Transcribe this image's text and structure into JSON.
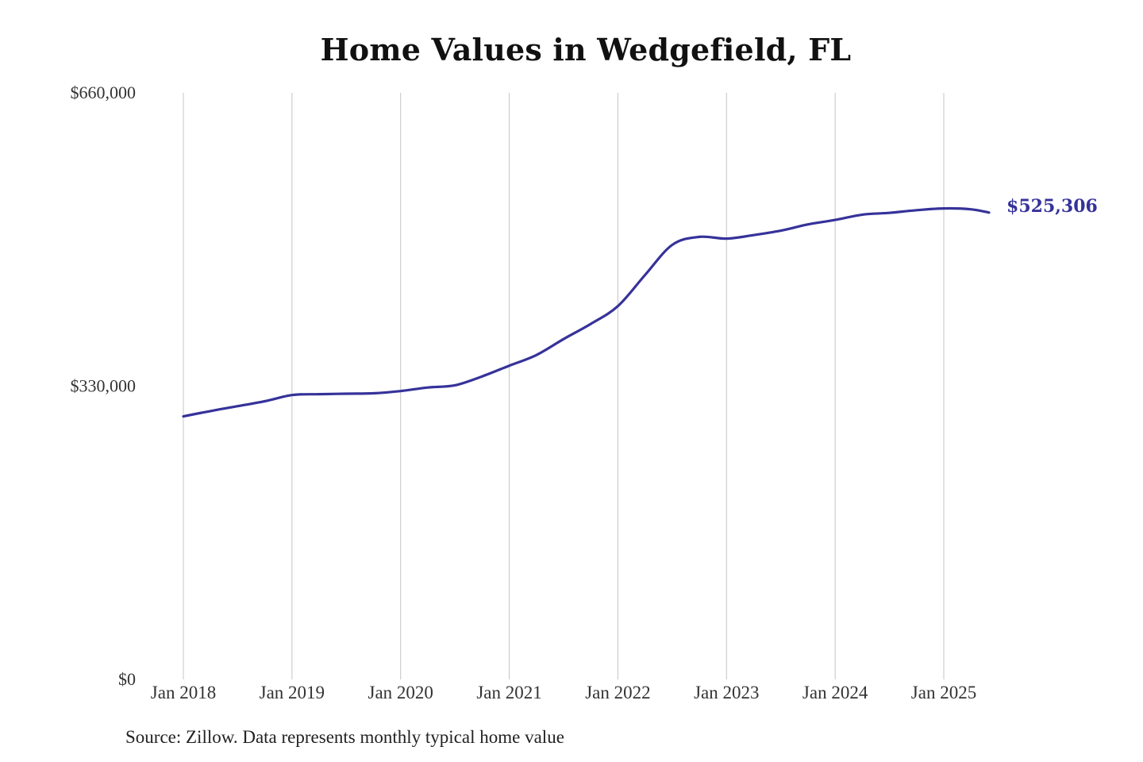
{
  "chart_data": {
    "type": "line",
    "title": "Home Values in Wedgefield, FL",
    "source": "Source: Zillow. Data represents monthly typical home value",
    "ylim": [
      0,
      660000
    ],
    "y_ticks": [
      {
        "value": 0,
        "label": "$0"
      },
      {
        "value": 330000,
        "label": "$330,000"
      },
      {
        "value": 660000,
        "label": "$660,000"
      }
    ],
    "x_ticks": [
      {
        "value": "2018-01",
        "label": "Jan 2018"
      },
      {
        "value": "2019-01",
        "label": "Jan 2019"
      },
      {
        "value": "2020-01",
        "label": "Jan 2020"
      },
      {
        "value": "2021-01",
        "label": "Jan 2021"
      },
      {
        "value": "2022-01",
        "label": "Jan 2022"
      },
      {
        "value": "2023-01",
        "label": "Jan 2023"
      },
      {
        "value": "2024-01",
        "label": "Jan 2024"
      },
      {
        "value": "2025-01",
        "label": "Jan 2025"
      }
    ],
    "grid": "vertical",
    "line_color": "#36329a",
    "series": [
      {
        "name": "",
        "points": [
          {
            "x": "2018-01",
            "y": 296000
          },
          {
            "x": "2018-04",
            "y": 302000
          },
          {
            "x": "2018-07",
            "y": 307500
          },
          {
            "x": "2018-10",
            "y": 313000
          },
          {
            "x": "2019-01",
            "y": 320000
          },
          {
            "x": "2019-04",
            "y": 321000
          },
          {
            "x": "2019-07",
            "y": 321500
          },
          {
            "x": "2019-10",
            "y": 322000
          },
          {
            "x": "2020-01",
            "y": 324500
          },
          {
            "x": "2020-04",
            "y": 328500
          },
          {
            "x": "2020-07",
            "y": 331000
          },
          {
            "x": "2020-10",
            "y": 341000
          },
          {
            "x": "2021-01",
            "y": 353000
          },
          {
            "x": "2021-04",
            "y": 365000
          },
          {
            "x": "2021-07",
            "y": 383000
          },
          {
            "x": "2021-10",
            "y": 400000
          },
          {
            "x": "2022-01",
            "y": 420000
          },
          {
            "x": "2022-04",
            "y": 455000
          },
          {
            "x": "2022-07",
            "y": 489000
          },
          {
            "x": "2022-10",
            "y": 498000
          },
          {
            "x": "2023-01",
            "y": 496000
          },
          {
            "x": "2023-04",
            "y": 500000
          },
          {
            "x": "2023-07",
            "y": 505000
          },
          {
            "x": "2023-10",
            "y": 512000
          },
          {
            "x": "2024-01",
            "y": 517000
          },
          {
            "x": "2024-04",
            "y": 523000
          },
          {
            "x": "2024-07",
            "y": 525000
          },
          {
            "x": "2024-10",
            "y": 528000
          },
          {
            "x": "2025-01",
            "y": 530000
          },
          {
            "x": "2025-04",
            "y": 529000
          },
          {
            "x": "2025-06",
            "y": 525306
          }
        ]
      }
    ],
    "end_label": "$525,306"
  }
}
